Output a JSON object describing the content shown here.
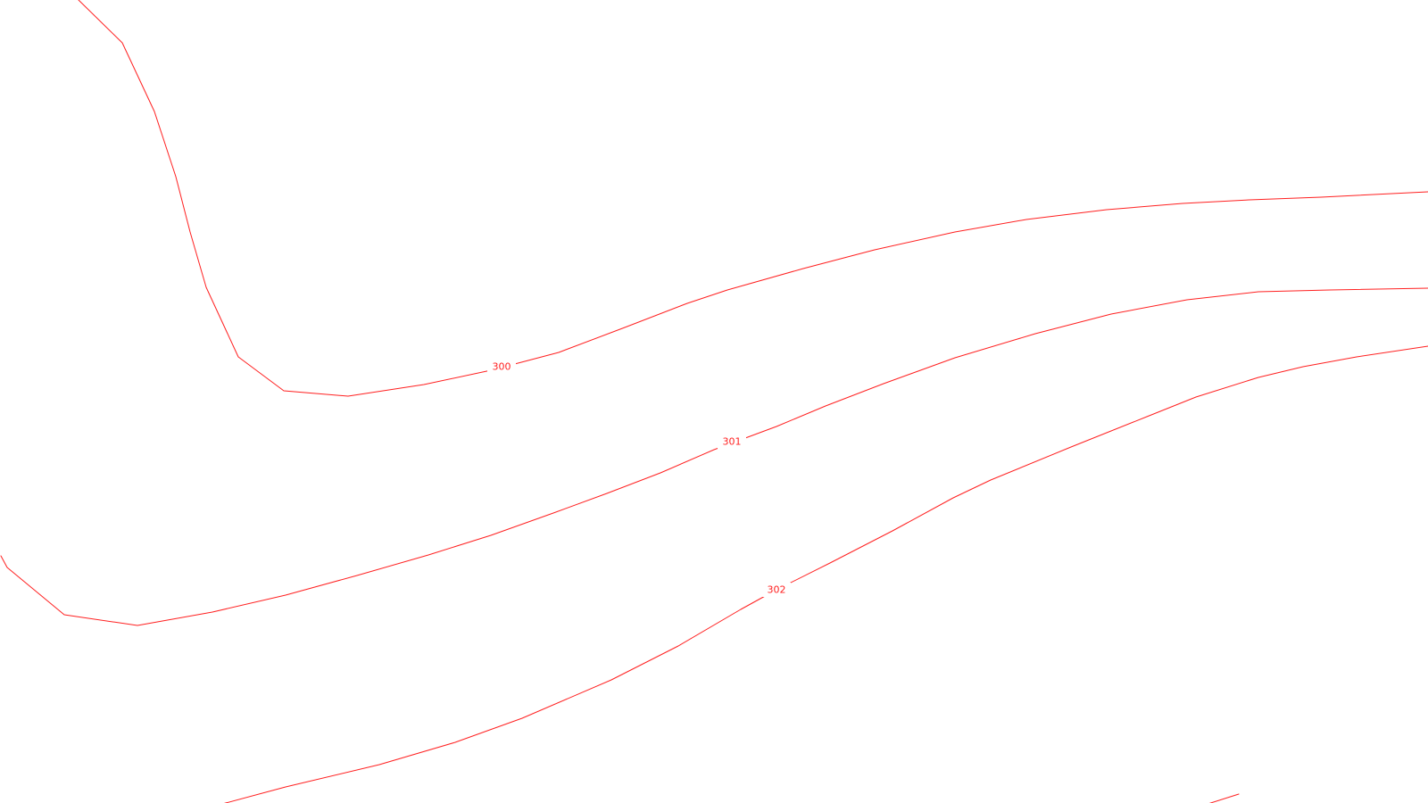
{
  "map": {
    "background_color": "#ffffff",
    "contour_color": "#ff2020",
    "contours": [
      {
        "elevation_label": "300"
      },
      {
        "elevation_label": "301"
      },
      {
        "elevation_label": "302"
      }
    ]
  }
}
